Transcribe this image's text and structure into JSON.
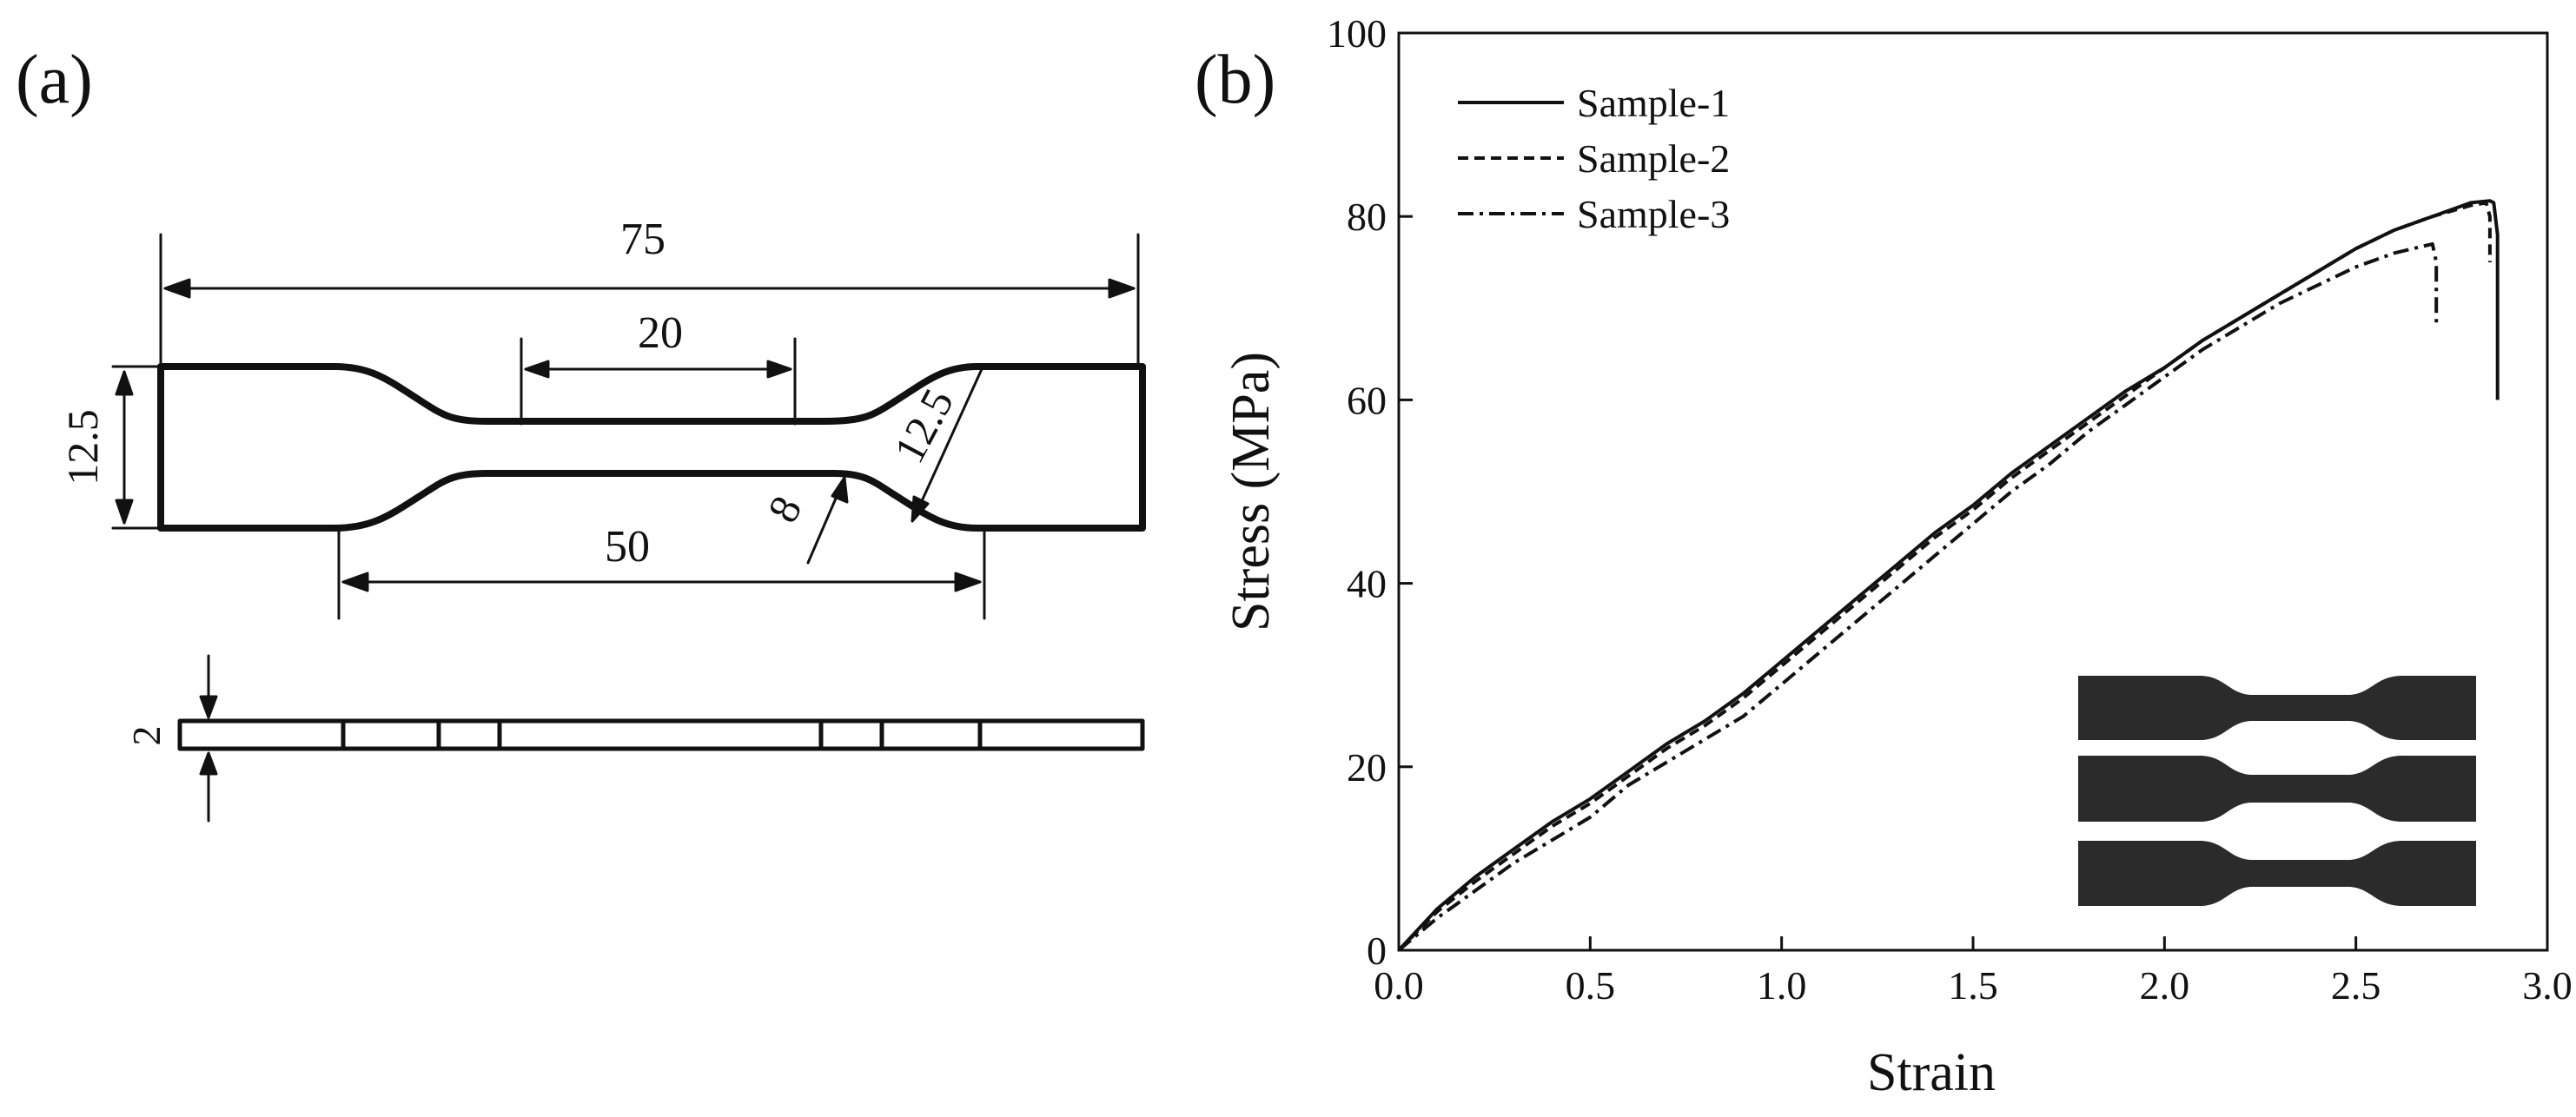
{
  "panel_a": {
    "label": "(a)",
    "dims": {
      "overall_length": "75",
      "gauge_length": "20",
      "width": "12.5",
      "radius": "12.5",
      "shoulder_distance": "50",
      "gauge_width": "8",
      "thickness": "2"
    }
  },
  "panel_b": {
    "label": "(b)"
  },
  "colors": {
    "line": "#111111",
    "specimen": "#2b2b2b",
    "background": "#ffffff"
  },
  "chart_data": {
    "type": "line",
    "xlabel": "Strain",
    "ylabel": "Stress (MPa)",
    "xlim": [
      0.0,
      3.0
    ],
    "ylim": [
      0,
      100
    ],
    "xticks": [
      0.0,
      0.5,
      1.0,
      1.5,
      2.0,
      2.5,
      3.0
    ],
    "xtick_labels": [
      "0.0",
      "0.5",
      "1.0",
      "1.5",
      "2.0",
      "2.5",
      "3.0"
    ],
    "yticks": [
      0,
      20,
      40,
      60,
      80,
      100
    ],
    "ytick_labels": [
      "0",
      "20",
      "40",
      "60",
      "80",
      "100"
    ],
    "legend_position": "top-left",
    "grid": false,
    "series": [
      {
        "name": "Sample-1",
        "style": "solid",
        "x": [
          0,
          0.1,
          0.2,
          0.3,
          0.4,
          0.5,
          0.6,
          0.7,
          0.8,
          0.9,
          1.0,
          1.1,
          1.2,
          1.3,
          1.4,
          1.5,
          1.6,
          1.7,
          1.8,
          1.9,
          2.0,
          2.1,
          2.2,
          2.3,
          2.4,
          2.5,
          2.6,
          2.7,
          2.8,
          2.85,
          2.86,
          2.87,
          2.87
        ],
        "y": [
          0,
          4.5,
          8,
          11,
          14,
          16.5,
          19.5,
          22.5,
          25,
          28,
          31.5,
          35,
          38.5,
          42,
          45.5,
          48.5,
          52,
          55,
          58,
          61,
          63.5,
          66.5,
          69,
          71.5,
          74,
          76.5,
          78.5,
          80,
          81.5,
          81.7,
          81.5,
          78,
          60
        ]
      },
      {
        "name": "Sample-2",
        "style": "dashed",
        "x": [
          0,
          0.1,
          0.2,
          0.3,
          0.4,
          0.5,
          0.6,
          0.7,
          0.8,
          0.9,
          1.0,
          1.1,
          1.2,
          1.3,
          1.4,
          1.5,
          1.6,
          1.7,
          1.8,
          1.9,
          2.0,
          2.1,
          2.2,
          2.3,
          2.4,
          2.5,
          2.6,
          2.7,
          2.8,
          2.84,
          2.85,
          2.85
        ],
        "y": [
          0,
          4.2,
          7.5,
          10.5,
          13.5,
          16,
          19,
          22,
          24.5,
          27.5,
          31,
          34.5,
          38,
          41.5,
          45,
          48,
          51.5,
          54.5,
          57.5,
          60.5,
          63.5,
          66.5,
          69,
          71.5,
          74,
          76.5,
          78.5,
          80,
          81.2,
          81.5,
          80,
          75
        ]
      },
      {
        "name": "Sample-3",
        "style": "dashdot",
        "x": [
          0,
          0.1,
          0.2,
          0.3,
          0.4,
          0.5,
          0.6,
          0.7,
          0.8,
          0.9,
          1.0,
          1.1,
          1.2,
          1.3,
          1.4,
          1.5,
          1.6,
          1.7,
          1.8,
          1.9,
          2.0,
          2.1,
          2.2,
          2.3,
          2.4,
          2.5,
          2.6,
          2.68,
          2.7,
          2.71,
          2.71
        ],
        "y": [
          0,
          3.5,
          6.5,
          9.5,
          12,
          14.5,
          18,
          20.5,
          23,
          25.5,
          29,
          32.5,
          36,
          39.5,
          43,
          46.5,
          50,
          53,
          56.5,
          59.5,
          62.5,
          65.5,
          68,
          70.5,
          72.5,
          74.5,
          76,
          76.8,
          77,
          75,
          68
        ]
      }
    ]
  }
}
